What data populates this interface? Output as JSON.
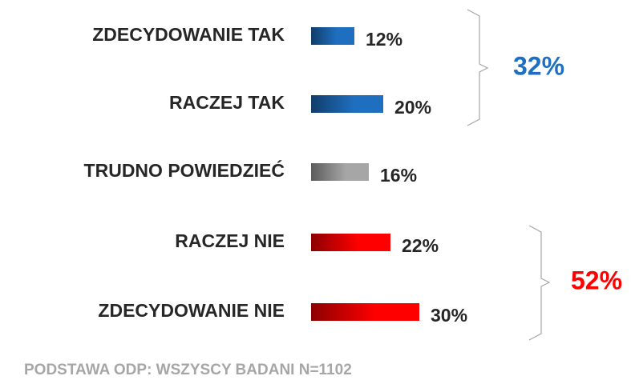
{
  "chart_data": {
    "type": "bar",
    "orientation": "horizontal",
    "categories": [
      "ZDECYDOWANIE TAK",
      "RACZEJ TAK",
      "TRUDNO POWIEDZIEĆ",
      "RACZEJ NIE",
      "ZDECYDOWANIE NIE"
    ],
    "values": [
      12,
      20,
      16,
      22,
      30
    ],
    "value_labels": [
      "12%",
      "20%",
      "16%",
      "22%",
      "30%"
    ],
    "colors": [
      "#1f6fc0",
      "#1f6fc0",
      "#a6a6a6",
      "#ff0000",
      "#ff0000"
    ],
    "annotations": [
      {
        "text": "32%",
        "color": "#1f6fc0"
      },
      {
        "text": "52%",
        "color": "#ff0000"
      }
    ],
    "footnote": "PODSTAWA ODP: WSZYSCY BADANI N=1102"
  }
}
